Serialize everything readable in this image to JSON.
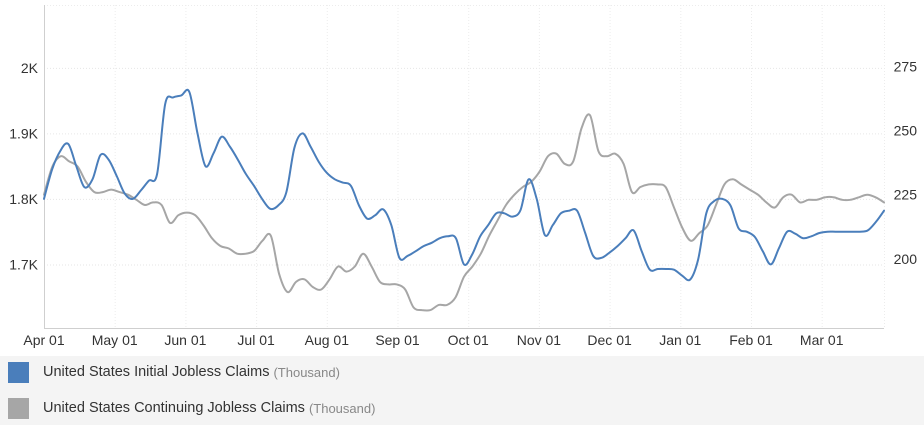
{
  "chart_data": {
    "type": "line",
    "x_tick_labels": [
      "Apr 01",
      "May 01",
      "Jun 01",
      "Jul 01",
      "Aug 01",
      "Sep 01",
      "Oct 01",
      "Nov 01",
      "Dec 01",
      "Jan 01",
      "Feb 01",
      "Mar 01"
    ],
    "y_left": {
      "ticks": [
        1700,
        1800,
        1900,
        2000
      ],
      "tick_labels": [
        "1.7K",
        "1.8K",
        "1.9K",
        "2K"
      ],
      "range": [
        1603,
        2096
      ]
    },
    "y_right": {
      "ticks": [
        200,
        225,
        250,
        275
      ],
      "tick_labels": [
        "200",
        "225",
        "250",
        "275"
      ],
      "range": [
        173,
        299
      ]
    },
    "grid": true,
    "legend_position": "bottom",
    "series": [
      {
        "name": "United States Initial Jobless Claims",
        "unit": "(Thousand)",
        "axis": "left",
        "color": "#4a7ebb",
        "values": [
          1800,
          1845,
          1873,
          1884,
          1850,
          1818,
          1830,
          1867,
          1860,
          1835,
          1808,
          1800,
          1813,
          1828,
          1838,
          1945,
          1955,
          1958,
          1963,
          1900,
          1850,
          1870,
          1895,
          1880,
          1860,
          1838,
          1820,
          1800,
          1785,
          1790,
          1810,
          1878,
          1900,
          1880,
          1857,
          1840,
          1830,
          1825,
          1820,
          1790,
          1770,
          1775,
          1784,
          1760,
          1710,
          1713,
          1720,
          1728,
          1733,
          1740,
          1743,
          1740,
          1700,
          1715,
          1743,
          1760,
          1778,
          1778,
          1773,
          1783,
          1830,
          1800,
          1745,
          1760,
          1778,
          1782,
          1782,
          1748,
          1713,
          1710,
          1718,
          1728,
          1740,
          1752,
          1720,
          1692,
          1693,
          1693,
          1692,
          1683,
          1677,
          1708,
          1778,
          1797,
          1800,
          1790,
          1755,
          1750,
          1742,
          1720,
          1700,
          1725,
          1750,
          1747,
          1740,
          1743,
          1748,
          1750,
          1750,
          1750,
          1750,
          1750,
          1752,
          1765,
          1782
        ]
      },
      {
        "name": "United States Continuing Jobless Claims",
        "unit": "(Thousand)",
        "axis": "right",
        "color": "#a6a6a6",
        "values": [
          225,
          236,
          240,
          238,
          236,
          230,
          226,
          226,
          227,
          226,
          225,
          223,
          221,
          222,
          221,
          214,
          217,
          218,
          217,
          213,
          208,
          205,
          204,
          202,
          202,
          203,
          207,
          209,
          194,
          187,
          191,
          192,
          189,
          188,
          192,
          197,
          195,
          197,
          202,
          197,
          191,
          190,
          190,
          188,
          181,
          180,
          180,
          182,
          182,
          185,
          193,
          197,
          202,
          209,
          215,
          221,
          225,
          228,
          230,
          234,
          240,
          241,
          237,
          238,
          251,
          256,
          242,
          240,
          241,
          237,
          226,
          228,
          229,
          229,
          228,
          220,
          212,
          207,
          210,
          213,
          221,
          229,
          231,
          229,
          227,
          225,
          222,
          220,
          224,
          225,
          222,
          223,
          223,
          224,
          224,
          223,
          223,
          224,
          225,
          224,
          222
        ]
      }
    ]
  }
}
